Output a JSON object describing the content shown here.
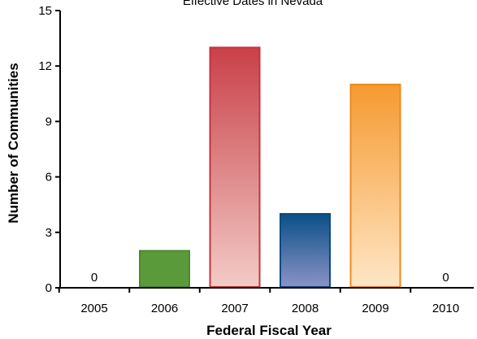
{
  "chart_data": {
    "type": "bar",
    "title": "Effective Dates in Nevada",
    "xlabel": "Federal Fiscal Year",
    "ylabel": "Number of Communities",
    "categories": [
      "2005",
      "2006",
      "2007",
      "2008",
      "2009",
      "2010"
    ],
    "values": [
      0,
      2,
      13,
      4,
      11,
      0
    ],
    "value_labels": [
      "0",
      "",
      "",
      "",
      "",
      "0"
    ],
    "ylim": [
      0,
      15
    ],
    "yticks": [
      "0",
      "3",
      "6",
      "9",
      "12",
      "15"
    ],
    "grid": false,
    "legend": "none",
    "bar_colors": [
      {
        "top": "#5a9a3a",
        "bottom": "#5a9a3a",
        "stroke": "#4a8a2e"
      },
      {
        "top": "#5a9a3a",
        "bottom": "#5a9a3a",
        "stroke": "#4a8a2e"
      },
      {
        "top": "#c94048",
        "bottom": "#f2cbc6",
        "stroke": "#c8323c"
      },
      {
        "top": "#0a4f86",
        "bottom": "#8a93c6",
        "stroke": "#0a4a80"
      },
      {
        "top": "#f59a30",
        "bottom": "#ffe6c6",
        "stroke": "#f08a1e"
      },
      {
        "top": "#5a9a3a",
        "bottom": "#5a9a3a",
        "stroke": "#4a8a2e"
      }
    ]
  }
}
